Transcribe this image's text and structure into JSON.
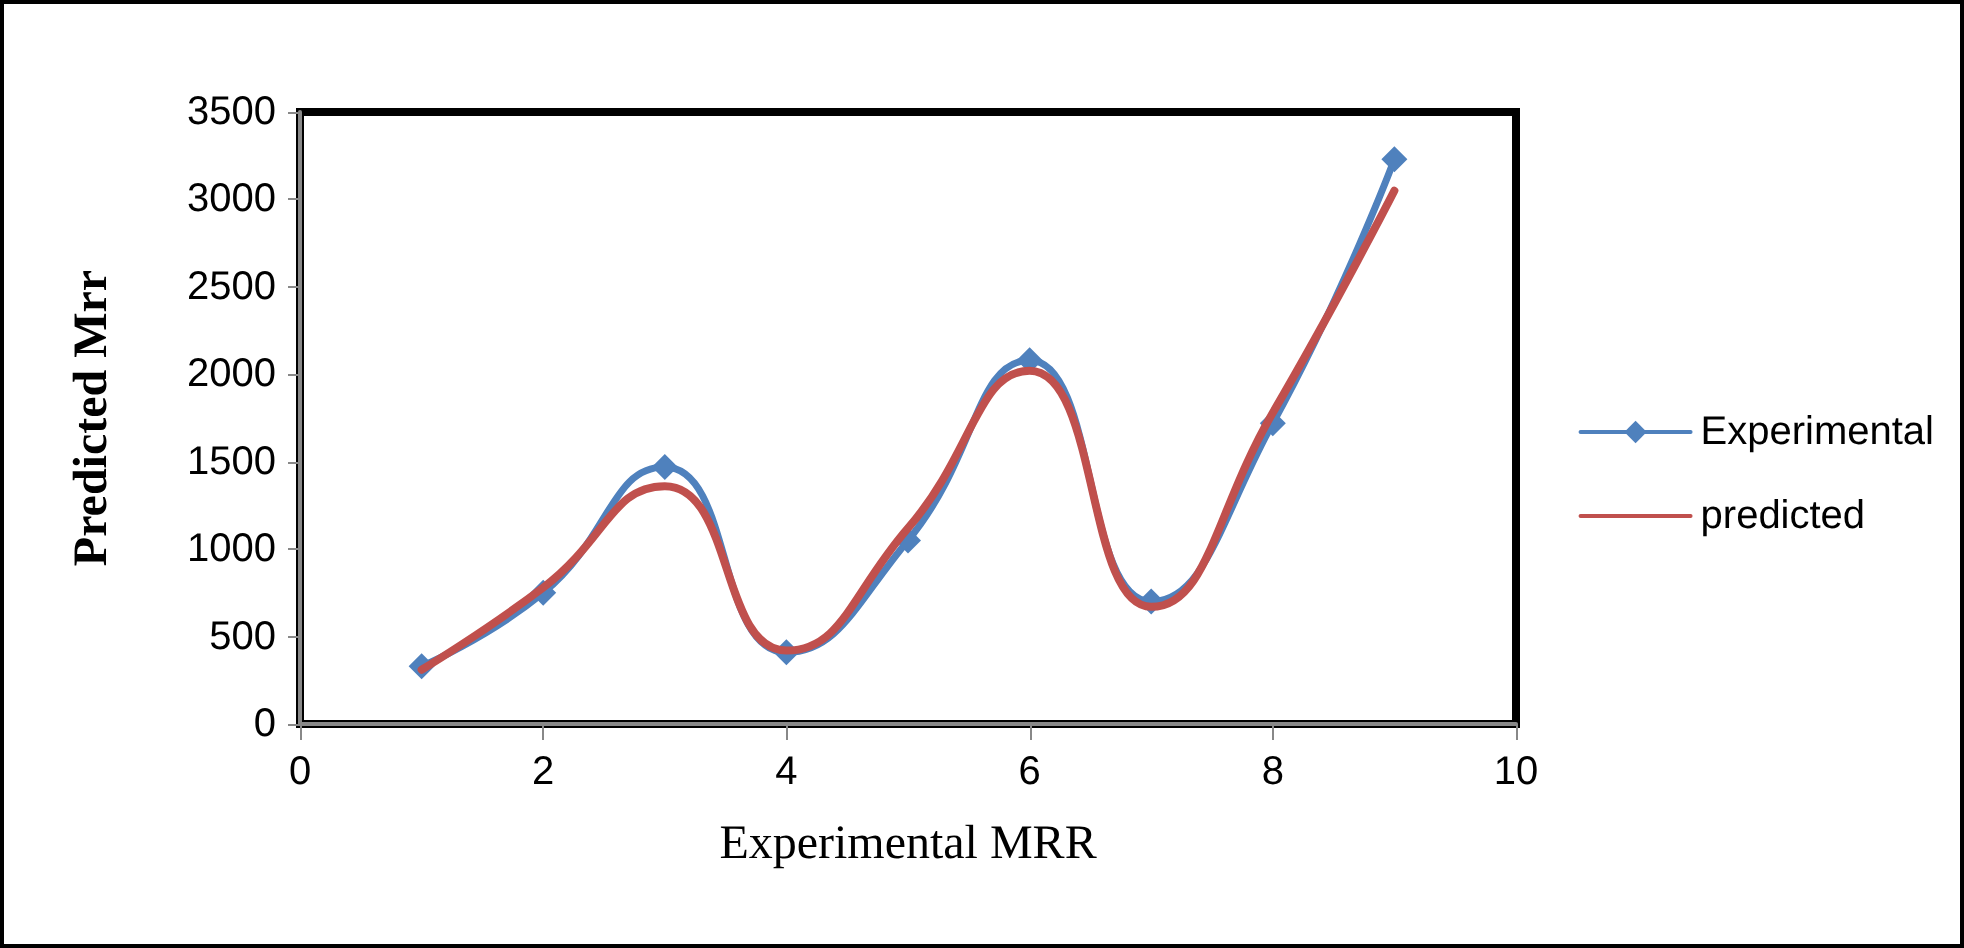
{
  "chart_data": {
    "type": "line",
    "xlabel": "Experimental MRR",
    "ylabel": "Predicted Mrr",
    "x": [
      1,
      2,
      3,
      4,
      5,
      6,
      7,
      8,
      9
    ],
    "series": [
      {
        "name": "Experimental",
        "color": "#4f81bd",
        "marker": "diamond",
        "values": [
          330,
          750,
          1470,
          410,
          1050,
          2080,
          700,
          1720,
          3230
        ]
      },
      {
        "name": "predicted",
        "color": "#c0504d",
        "marker": "none",
        "values": [
          310,
          780,
          1360,
          420,
          1120,
          2020,
          670,
          1780,
          3050
        ]
      }
    ],
    "xlim": [
      0,
      10
    ],
    "xticks": [
      0,
      2,
      4,
      6,
      8,
      10
    ],
    "ylim": [
      0,
      3500
    ],
    "yticks": [
      0,
      500,
      1000,
      1500,
      2000,
      2500,
      3000,
      3500
    ],
    "grid": false,
    "legend": "right"
  }
}
